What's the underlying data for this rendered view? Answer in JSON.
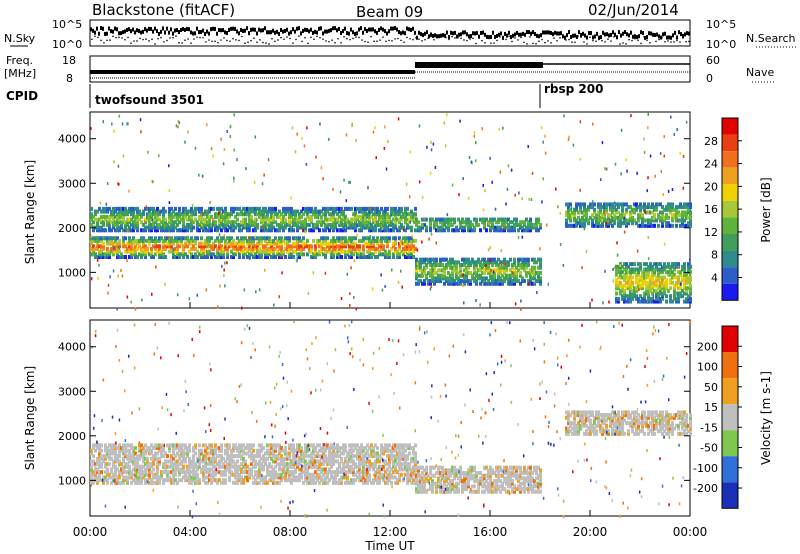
{
  "header": {
    "title": "Blackstone (fitACF)",
    "beam": "Beam 09",
    "date": "02/Jun/2014"
  },
  "noise_panel": {
    "left_label": "N.Sky",
    "right_label": "N.Search",
    "left_ticks": [
      "10^5",
      "10^0"
    ],
    "right_ticks": [
      "10^5",
      "10^0"
    ]
  },
  "freq_panel": {
    "left_label_1": "Freq.",
    "left_label_2": "[MHz]",
    "right_label": "Nave",
    "left_ticks": [
      "18",
      "8"
    ],
    "right_ticks": [
      "60",
      "0"
    ]
  },
  "cpid_panel": {
    "label": "CPID",
    "programs": [
      {
        "name": "twofsound 3501",
        "start_hour": 0
      },
      {
        "name": "rbsp 200",
        "start_hour": 18
      }
    ]
  },
  "chart_data": [
    {
      "type": "heatmap",
      "name": "power",
      "xlabel": "Time UT",
      "ylabel": "Slant Range [km]",
      "xlim": [
        0,
        24
      ],
      "ylim": [
        200,
        4600
      ],
      "y_ticks": [
        "1000",
        "2000",
        "3000",
        "4000"
      ],
      "colorbar": {
        "label": "Power [dB]",
        "ticks": [
          "4",
          "8",
          "12",
          "16",
          "20",
          "24",
          "28"
        ],
        "colors": [
          "#1a1af0",
          "#2b5ec8",
          "#2e8b8b",
          "#3e9e5a",
          "#5fb43c",
          "#a8c83a",
          "#f0d000",
          "#f0a020",
          "#f07020",
          "#e84010",
          "#e00000"
        ]
      },
      "bands": [
        {
          "t0": 0,
          "t1": 13,
          "r0": 1300,
          "r1": 1750,
          "level": 20
        },
        {
          "t0": 0,
          "t1": 13,
          "r0": 1900,
          "r1": 2400,
          "level": 10
        },
        {
          "t0": 13,
          "t1": 18,
          "r0": 700,
          "r1": 1300,
          "level": 10
        },
        {
          "t0": 13,
          "t1": 18,
          "r0": 1900,
          "r1": 2200,
          "level": 8
        },
        {
          "t0": 19,
          "t1": 24,
          "r0": 2000,
          "r1": 2500,
          "level": 10
        },
        {
          "t0": 21,
          "t1": 24,
          "r0": 300,
          "r1": 1200,
          "level": 14
        }
      ]
    },
    {
      "type": "heatmap",
      "name": "velocity",
      "xlabel": "Time UT",
      "ylabel": "Slant Range [km]",
      "xlim": [
        0,
        24
      ],
      "ylim": [
        200,
        4600
      ],
      "y_ticks": [
        "1000",
        "2000",
        "3000",
        "4000"
      ],
      "x_ticks": [
        "00:00",
        "04:00",
        "08:00",
        "12:00",
        "16:00",
        "20:00",
        "00:00"
      ],
      "colorbar": {
        "label": "Velocity [m s-1]",
        "ticks": [
          "200",
          "100",
          "50",
          "15",
          "-15",
          "-50",
          "-100",
          "-200"
        ],
        "colors": [
          "#1a2fb8",
          "#2f6fd8",
          "#7fc850",
          "#bfbfbf",
          "#f0a020",
          "#f07010",
          "#e00000"
        ]
      },
      "bands": [
        {
          "t0": 0,
          "t1": 13,
          "r0": 900,
          "r1": 1800,
          "level": 0
        },
        {
          "t0": 13,
          "t1": 18,
          "r0": 700,
          "r1": 1300,
          "level": 0
        },
        {
          "t0": 19,
          "t1": 24,
          "r0": 2000,
          "r1": 2500,
          "level": 0
        }
      ]
    }
  ]
}
